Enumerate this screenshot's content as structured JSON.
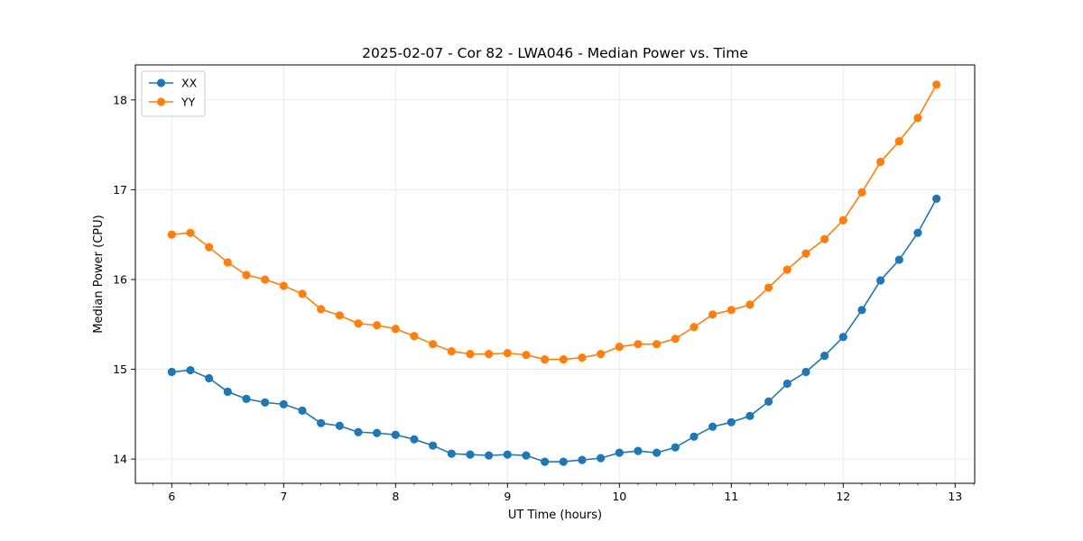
{
  "chart_data": {
    "type": "line",
    "title": "2025-02-07 - Cor 82 - LWA046 - Median Power vs. Time",
    "xlabel": "UT Time (hours)",
    "ylabel": "Median Power (CPU)",
    "xlim": [
      5.675,
      13.175
    ],
    "ylim": [
      13.73,
      18.39
    ],
    "xticks": [
      6,
      7,
      8,
      9,
      10,
      11,
      12,
      13
    ],
    "yticks": [
      14,
      15,
      16,
      17,
      18
    ],
    "grid": true,
    "legend_position": "top-left",
    "x": [
      6.0,
      6.1667,
      6.3333,
      6.5,
      6.6667,
      6.8333,
      7.0,
      7.1667,
      7.3333,
      7.5,
      7.6667,
      7.8333,
      8.0,
      8.1667,
      8.3333,
      8.5,
      8.6667,
      8.8333,
      9.0,
      9.1667,
      9.3333,
      9.5,
      9.6667,
      9.8333,
      10.0,
      10.1667,
      10.3333,
      10.5,
      10.6667,
      10.8333,
      11.0,
      11.1667,
      11.3333,
      11.5,
      11.6667,
      11.8333,
      12.0,
      12.1667,
      12.3333,
      12.5,
      12.6667,
      12.8333
    ],
    "series": [
      {
        "name": "XX",
        "color": "#1f77b4",
        "values": [
          14.97,
          14.99,
          14.9,
          14.75,
          14.67,
          14.63,
          14.61,
          14.54,
          14.4,
          14.37,
          14.3,
          14.29,
          14.27,
          14.22,
          14.15,
          14.06,
          14.05,
          14.04,
          14.05,
          14.04,
          13.97,
          13.97,
          13.99,
          14.01,
          14.07,
          14.09,
          14.07,
          14.13,
          14.25,
          14.36,
          14.41,
          14.48,
          14.64,
          14.84,
          14.97,
          15.15,
          15.36,
          15.66,
          15.99,
          16.22,
          16.52,
          16.9
        ]
      },
      {
        "name": "YY",
        "color": "#ff7f0e",
        "values": [
          16.5,
          16.52,
          16.36,
          16.19,
          16.05,
          16.0,
          15.93,
          15.84,
          15.67,
          15.6,
          15.51,
          15.49,
          15.45,
          15.37,
          15.28,
          15.2,
          15.17,
          15.17,
          15.18,
          15.16,
          15.11,
          15.11,
          15.13,
          15.17,
          15.25,
          15.28,
          15.28,
          15.34,
          15.47,
          15.61,
          15.66,
          15.72,
          15.91,
          16.11,
          16.29,
          16.45,
          16.66,
          16.97,
          17.31,
          17.54,
          17.8,
          18.17
        ]
      }
    ]
  }
}
